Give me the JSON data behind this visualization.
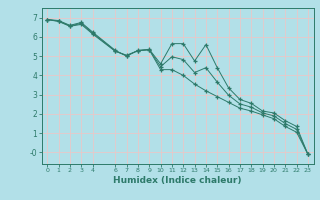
{
  "xlabel": "Humidex (Indice chaleur)",
  "bg_color": "#b2e0e8",
  "grid_color": "#e8c8c8",
  "line_color": "#2d7a6a",
  "x_data": [
    0,
    1,
    2,
    3,
    4,
    6,
    7,
    8,
    9,
    10,
    11,
    12,
    13,
    14,
    15,
    16,
    17,
    18,
    19,
    20,
    21,
    22,
    23
  ],
  "line1_y": [
    6.9,
    6.85,
    6.6,
    6.75,
    6.25,
    5.3,
    5.0,
    5.3,
    5.35,
    4.6,
    5.65,
    5.65,
    4.75,
    5.6,
    4.4,
    3.35,
    2.75,
    2.55,
    2.15,
    2.05,
    1.65,
    1.35,
    -0.1
  ],
  "line2_y": [
    6.9,
    6.8,
    6.55,
    6.65,
    6.15,
    5.25,
    5.05,
    5.28,
    5.33,
    4.3,
    4.3,
    4.0,
    3.55,
    3.2,
    2.9,
    2.6,
    2.3,
    2.15,
    1.95,
    1.75,
    1.35,
    1.05,
    -0.1
  ],
  "line3_y": [
    6.9,
    6.82,
    6.57,
    6.7,
    6.2,
    5.27,
    5.02,
    5.29,
    5.34,
    4.45,
    4.97,
    4.82,
    4.15,
    4.4,
    3.65,
    2.97,
    2.52,
    2.35,
    2.05,
    1.9,
    1.5,
    1.2,
    -0.1
  ],
  "ylim": [
    -0.6,
    7.5
  ],
  "xlim": [
    -0.5,
    23.5
  ],
  "yticks": [
    0,
    1,
    2,
    3,
    4,
    5,
    6,
    7
  ],
  "ytick_labels": [
    "-0",
    "1",
    "2",
    "3",
    "4",
    "5",
    "6",
    "7"
  ],
  "xticks": [
    0,
    1,
    2,
    3,
    4,
    6,
    7,
    8,
    9,
    10,
    11,
    12,
    13,
    14,
    15,
    16,
    17,
    18,
    19,
    20,
    21,
    22,
    23
  ]
}
